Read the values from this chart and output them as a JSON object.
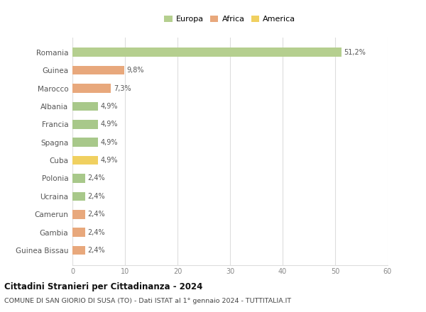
{
  "countries": [
    "Guinea Bissau",
    "Gambia",
    "Camerun",
    "Ucraina",
    "Polonia",
    "Cuba",
    "Spagna",
    "Francia",
    "Albania",
    "Marocco",
    "Guinea",
    "Romania"
  ],
  "values": [
    2.4,
    2.4,
    2.4,
    2.4,
    2.4,
    4.9,
    4.9,
    4.9,
    4.9,
    7.3,
    9.8,
    51.2
  ],
  "labels": [
    "2,4%",
    "2,4%",
    "2,4%",
    "2,4%",
    "2,4%",
    "4,9%",
    "4,9%",
    "4,9%",
    "4,9%",
    "7,3%",
    "9,8%",
    "51,2%"
  ],
  "colors": [
    "#e8a87c",
    "#e8a87c",
    "#e8a87c",
    "#a8c88a",
    "#a8c88a",
    "#f0d060",
    "#a8c88a",
    "#a8c88a",
    "#a8c88a",
    "#e8a87c",
    "#e8a87c",
    "#b5cf8f"
  ],
  "legend": {
    "Europa": "#b5cf8f",
    "Africa": "#e8a87c",
    "America": "#f0d060"
  },
  "xlim": [
    0,
    60
  ],
  "xticks": [
    0,
    10,
    20,
    30,
    40,
    50,
    60
  ],
  "title": "Cittadini Stranieri per Cittadinanza - 2024",
  "subtitle": "COMUNE DI SAN GIORIO DI SUSA (TO) - Dati ISTAT al 1° gennaio 2024 - TUTTITALIA.IT",
  "bg_color": "#ffffff",
  "grid_color": "#dddddd",
  "bar_height": 0.5
}
